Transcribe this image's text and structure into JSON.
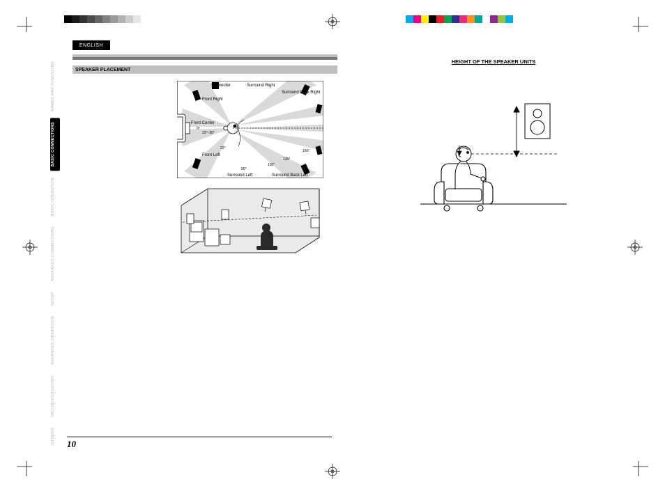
{
  "colorbars": {
    "left_swatches": [
      "#000000",
      "#1a1a1a",
      "#333333",
      "#4d4d4d",
      "#666666",
      "#808080",
      "#999999",
      "#b3b3b3",
      "#cccccc",
      "#e6e6e6",
      "#ffffff"
    ],
    "right_swatches": [
      "#00aeef",
      "#ec008c",
      "#fff200",
      "#000000",
      "#ed1c24",
      "#00a651",
      "#2e3192",
      "#ee2a7b",
      "#f7941d",
      "#00a99d",
      "#ffffff",
      "#92278f",
      "#8dc63f",
      "#00adee"
    ]
  },
  "language_tab": "ENGLISH",
  "nav": [
    {
      "label": "NAMES AND FUNCTIONS",
      "active": false
    },
    {
      "label": "BASIC CONNECTIONS",
      "active": true
    },
    {
      "label": "BASIC OPERATION",
      "active": false
    },
    {
      "label": "ADVANCED CONNECTIONS",
      "active": false
    },
    {
      "label": "SETUP",
      "active": false
    },
    {
      "label": "ADVANCED OPERATION",
      "active": false
    },
    {
      "label": "TROUBLESHOOTING",
      "active": false
    },
    {
      "label": "OTHERS",
      "active": false
    }
  ],
  "left": {
    "section_title": "SPEAKER PLACEMENT",
    "diagram1": {
      "labels": {
        "subwoofer": "Subwoofer",
        "front_right": "Front Right",
        "front_left": "Front Left",
        "front_center": "Front Center",
        "surround_right": "Surround Right",
        "surround_left": "Surround Left",
        "surround_back_right": "Surround Back Right",
        "surround_back_left": "Surround Back Left",
        "angle_0": "0°",
        "angle_22_30": "22°–30°",
        "angle_22": "22°",
        "angle_90": "90°",
        "angle_110": "110°",
        "angle_135": "135°",
        "angle_150": "150°"
      }
    }
  },
  "right": {
    "heading": "HEIGHT OF THE SPEAKER UNITS"
  },
  "page_number": "10"
}
